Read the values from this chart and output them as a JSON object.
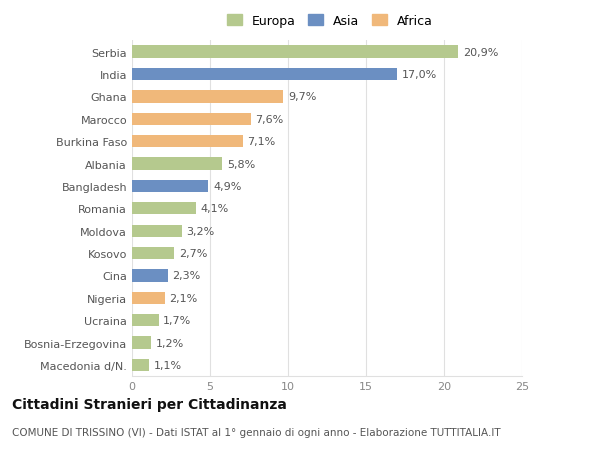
{
  "countries": [
    "Macedonia d/N.",
    "Bosnia-Erzegovina",
    "Ucraina",
    "Nigeria",
    "Cina",
    "Kosovo",
    "Moldova",
    "Romania",
    "Bangladesh",
    "Albania",
    "Burkina Faso",
    "Marocco",
    "Ghana",
    "India",
    "Serbia"
  ],
  "values": [
    1.1,
    1.2,
    1.7,
    2.1,
    2.3,
    2.7,
    3.2,
    4.1,
    4.9,
    5.8,
    7.1,
    7.6,
    9.7,
    17.0,
    20.9
  ],
  "labels": [
    "1,1%",
    "1,2%",
    "1,7%",
    "2,1%",
    "2,3%",
    "2,7%",
    "3,2%",
    "4,1%",
    "4,9%",
    "5,8%",
    "7,1%",
    "7,6%",
    "9,7%",
    "17,0%",
    "20,9%"
  ],
  "continents": [
    "Europa",
    "Europa",
    "Europa",
    "Africa",
    "Asia",
    "Europa",
    "Europa",
    "Europa",
    "Asia",
    "Europa",
    "Africa",
    "Africa",
    "Africa",
    "Asia",
    "Europa"
  ],
  "colors": {
    "Europa": "#b5c98e",
    "Asia": "#6b8fc2",
    "Africa": "#f0b87a"
  },
  "xlim": [
    0,
    25
  ],
  "xticks": [
    0,
    5,
    10,
    15,
    20,
    25
  ],
  "title": "Cittadini Stranieri per Cittadinanza",
  "subtitle": "COMUNE DI TRISSINO (VI) - Dati ISTAT al 1° gennaio di ogni anno - Elaborazione TUTTITALIA.IT",
  "background_color": "#ffffff",
  "grid_color": "#e0e0e0",
  "bar_height": 0.55,
  "label_fontsize": 8,
  "ytick_fontsize": 8,
  "xtick_fontsize": 8,
  "title_fontsize": 10,
  "subtitle_fontsize": 7.5
}
